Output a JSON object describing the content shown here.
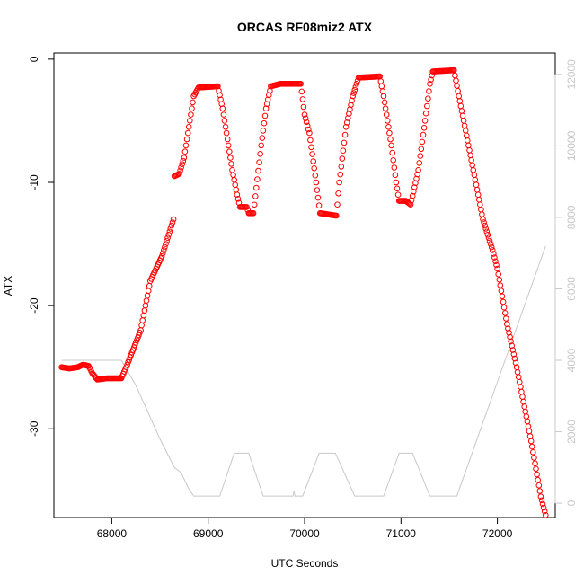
{
  "chart_data": {
    "type": "scatter",
    "title": "ORCAS RF08miz2 ATX",
    "xlabel": "UTC Seconds",
    "ylabel": "ATX",
    "xlim": [
      67400,
      72600
    ],
    "ylim": [
      -37.2,
      0.5
    ],
    "y2lim": [
      -400,
      12600
    ],
    "x_ticks": [
      68000,
      69000,
      70000,
      71000,
      72000
    ],
    "y_ticks": [
      0,
      -10,
      -20,
      -30
    ],
    "y2_ticks": [
      0,
      2000,
      4000,
      6000,
      8000,
      10000,
      12000
    ],
    "grid": false,
    "point_color": "#ff0000",
    "line_color": "#c8c8c8",
    "series": [
      {
        "axis": "left",
        "style": "points",
        "anchors": [
          [
            67480,
            -25.0
          ],
          [
            67560,
            -25.1
          ],
          [
            67650,
            -25.0
          ],
          [
            67700,
            -24.8
          ],
          [
            67760,
            -24.9
          ],
          [
            67800,
            -25.5
          ],
          [
            67850,
            -26.0
          ],
          [
            67950,
            -25.9
          ],
          [
            68100,
            -25.9
          ],
          [
            68150,
            -25.0
          ],
          [
            68300,
            -22.0
          ],
          [
            68400,
            -18.0
          ],
          [
            68520,
            -16.0
          ],
          [
            68640,
            -13.0
          ],
          [
            68650,
            -9.5
          ],
          [
            68700,
            -9.3
          ],
          [
            68750,
            -8.0
          ],
          [
            68850,
            -3.0
          ],
          [
            68900,
            -2.3
          ],
          [
            69100,
            -2.2
          ],
          [
            69150,
            -4.0
          ],
          [
            69250,
            -9.0
          ],
          [
            69300,
            -11.0
          ],
          [
            69330,
            -12.0
          ],
          [
            69400,
            -12.0
          ],
          [
            69420,
            -12.5
          ],
          [
            69470,
            -12.5
          ],
          [
            69550,
            -7.0
          ],
          [
            69600,
            -4.0
          ],
          [
            69650,
            -2.2
          ],
          [
            69750,
            -2.0
          ],
          [
            69960,
            -2.0
          ],
          [
            70000,
            -4.5
          ],
          [
            70050,
            -6.0
          ],
          [
            70120,
            -10.0
          ],
          [
            70160,
            -12.5
          ],
          [
            70330,
            -12.7
          ],
          [
            70360,
            -10.0
          ],
          [
            70430,
            -5.5
          ],
          [
            70500,
            -3.0
          ],
          [
            70560,
            -1.5
          ],
          [
            70780,
            -1.4
          ],
          [
            70820,
            -3.0
          ],
          [
            70900,
            -7.0
          ],
          [
            70950,
            -10.0
          ],
          [
            70980,
            -11.5
          ],
          [
            71050,
            -11.5
          ],
          [
            71100,
            -11.8
          ],
          [
            71180,
            -9.0
          ],
          [
            71250,
            -5.0
          ],
          [
            71300,
            -2.0
          ],
          [
            71330,
            -1.0
          ],
          [
            71550,
            -0.9
          ],
          [
            71600,
            -3.0
          ],
          [
            71700,
            -7.0
          ],
          [
            71800,
            -11.0
          ],
          [
            71850,
            -13.0
          ],
          [
            71950,
            -15.5
          ],
          [
            72000,
            -17.0
          ],
          [
            72100,
            -21.5
          ],
          [
            72200,
            -25.0
          ],
          [
            72350,
            -31.0
          ],
          [
            72450,
            -35.5
          ],
          [
            72500,
            -37.0
          ]
        ]
      },
      {
        "axis": "right",
        "style": "line",
        "points": [
          [
            67480,
            4000
          ],
          [
            68100,
            4000
          ],
          [
            68250,
            3300
          ],
          [
            68500,
            1800
          ],
          [
            68650,
            1000
          ],
          [
            68720,
            850
          ],
          [
            68800,
            400
          ],
          [
            68850,
            200
          ],
          [
            69120,
            200
          ],
          [
            69270,
            1400
          ],
          [
            69420,
            1400
          ],
          [
            69570,
            200
          ],
          [
            69880,
            200
          ],
          [
            69890,
            350
          ],
          [
            69900,
            200
          ],
          [
            69980,
            200
          ],
          [
            70150,
            1400
          ],
          [
            70320,
            1400
          ],
          [
            70520,
            200
          ],
          [
            70820,
            200
          ],
          [
            70980,
            1400
          ],
          [
            71120,
            1400
          ],
          [
            71300,
            200
          ],
          [
            71580,
            200
          ],
          [
            72500,
            7200
          ]
        ]
      }
    ]
  }
}
